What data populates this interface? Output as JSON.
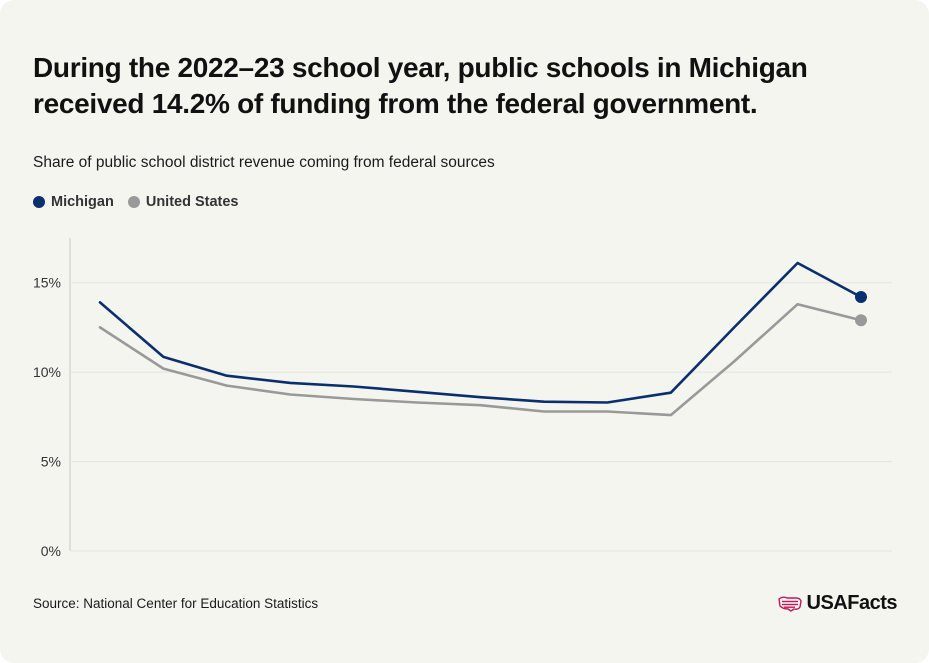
{
  "colors": {
    "michigan": "#0a2f6e",
    "united_states": "#999999",
    "grid": "#e4e4df",
    "axis": "#c9c9c4",
    "tick_text": "#333333",
    "logo_mark": "#c2185b"
  },
  "header": {
    "title": "During the 2022–23 school year, public schools in Michigan received 14.2% of funding from the federal government.",
    "subtitle": "Share of public school district revenue coming from federal sources"
  },
  "footer": {
    "source": "Source: National Center for Education Statistics",
    "logo_text": "USAFacts",
    "logo_icon": "us-map-flag-icon"
  },
  "chart_data": {
    "type": "line",
    "x": [
      1,
      2,
      3,
      4,
      5,
      6,
      7,
      8,
      9,
      10,
      11,
      12,
      13
    ],
    "xlabel": "",
    "ylabel": "",
    "ylim": [
      0,
      17.5
    ],
    "y_ticks": [
      0,
      5,
      10,
      15
    ],
    "y_tick_labels": [
      "0%",
      "5%",
      "10%",
      "15%"
    ],
    "grid": true,
    "legend_position": "top-left",
    "series": [
      {
        "name": "Michigan",
        "color": "#0a2f6e",
        "values": [
          13.9,
          10.85,
          9.8,
          9.4,
          9.2,
          8.9,
          8.6,
          8.35,
          8.3,
          8.85,
          12.5,
          16.1,
          14.2
        ],
        "end_marker": true
      },
      {
        "name": "United States",
        "color": "#999999",
        "values": [
          12.5,
          10.2,
          9.25,
          8.75,
          8.5,
          8.3,
          8.15,
          7.8,
          7.8,
          7.6,
          10.6,
          13.8,
          12.9
        ],
        "end_marker": true
      }
    ]
  }
}
